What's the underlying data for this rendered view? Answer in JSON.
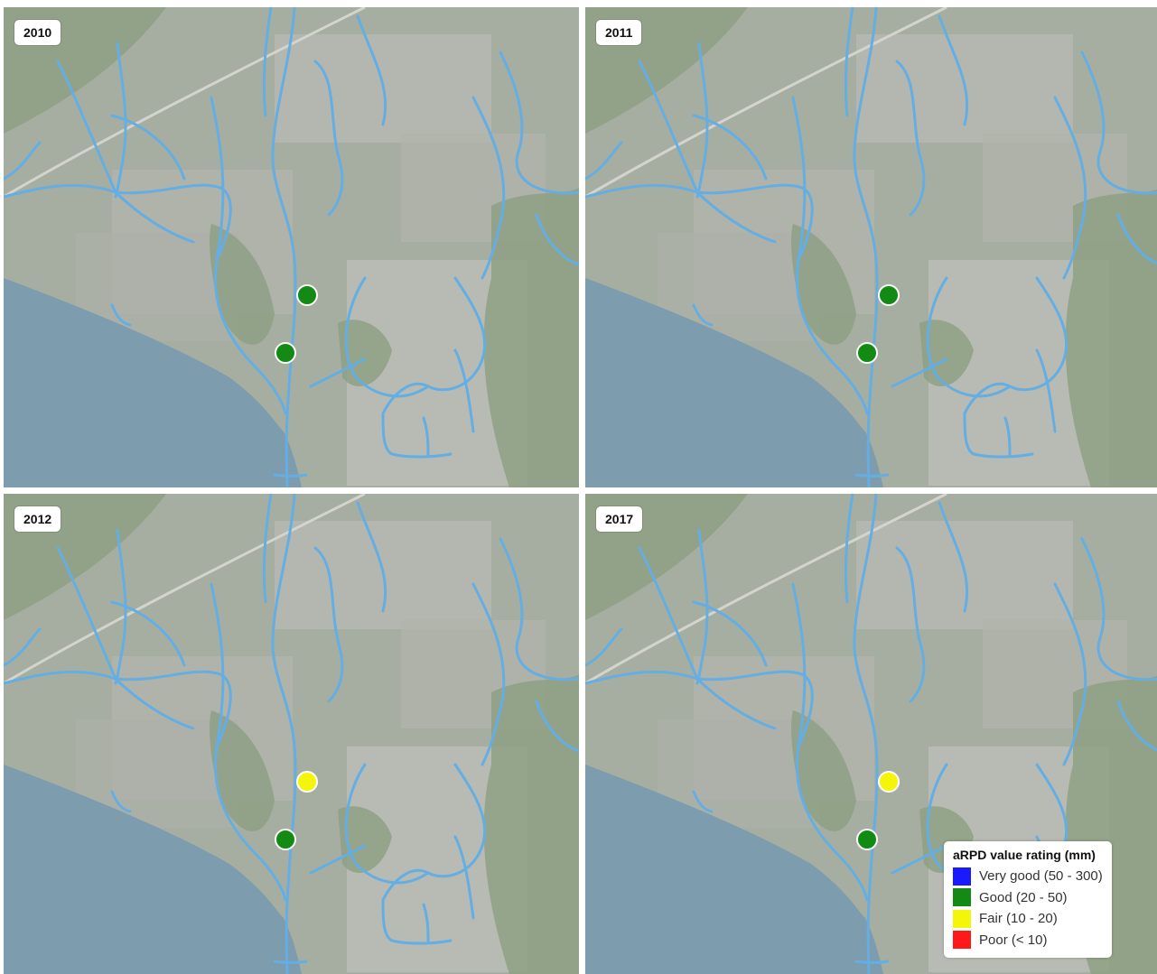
{
  "panels": [
    {
      "year": "2010",
      "sites": [
        {
          "id": "upper",
          "rating": "good"
        },
        {
          "id": "lower",
          "rating": "good"
        }
      ]
    },
    {
      "year": "2011",
      "sites": [
        {
          "id": "upper",
          "rating": "good"
        },
        {
          "id": "lower",
          "rating": "good"
        }
      ]
    },
    {
      "year": "2012",
      "sites": [
        {
          "id": "upper",
          "rating": "fair"
        },
        {
          "id": "lower",
          "rating": "good"
        }
      ]
    },
    {
      "year": "2017",
      "sites": [
        {
          "id": "upper",
          "rating": "fair"
        },
        {
          "id": "lower",
          "rating": "good"
        }
      ]
    }
  ],
  "legend": {
    "title": "aRPD value rating (mm)",
    "items": [
      {
        "key": "very_good",
        "label": "Very good (50 - 300)",
        "color": "#1a1aff"
      },
      {
        "key": "good",
        "label": "Good (20 - 50)",
        "color": "#138a13"
      },
      {
        "key": "fair",
        "label": "Fair (10 - 20)",
        "color": "#f5f50a"
      },
      {
        "key": "poor",
        "label": "Poor (< 10)",
        "color": "#ff1a1a"
      }
    ]
  },
  "colors": {
    "stream": "#4fa3e0",
    "sea": "#6b8fa3",
    "marker_outline": "#ffffff"
  }
}
